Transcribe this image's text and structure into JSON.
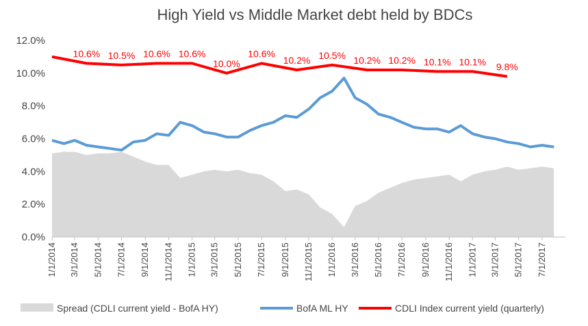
{
  "chart_data": {
    "type": "line",
    "title": "High Yield  vs  Middle Market debt held by BDCs",
    "ylim": [
      0,
      12
    ],
    "y_ticks": [
      "0.0%",
      "2.0%",
      "4.0%",
      "6.0%",
      "8.0%",
      "10.0%",
      "12.0%"
    ],
    "x_tick_labels": [
      "1/1/2014",
      "3/1/2014",
      "5/1/2014",
      "7/1/2014",
      "9/1/2014",
      "11/1/2014",
      "1/1/2015",
      "3/1/2015",
      "5/1/2015",
      "7/1/2015",
      "9/1/2015",
      "11/1/2015",
      "1/1/2016",
      "3/1/2016",
      "5/1/2016",
      "7/1/2016",
      "9/1/2016",
      "11/1/2016",
      "1/1/2017",
      "3/1/2017",
      "5/1/2017",
      "7/1/2017"
    ],
    "x_range": [
      "2014-01-01",
      "2017-08-31"
    ],
    "legend_position": "bottom",
    "colors": {
      "spread": "#d9d9d9",
      "hy": "#5b9bd5",
      "cdli": "#ff0000",
      "text": "#444444"
    },
    "series": [
      {
        "name": "CDLI Index current yield (quarterly)",
        "kind": "line",
        "x": [
          "2014-01-01",
          "2014-04-01",
          "2014-07-01",
          "2014-10-01",
          "2015-01-01",
          "2015-04-01",
          "2015-07-01",
          "2015-10-01",
          "2016-01-01",
          "2016-04-01",
          "2016-07-01",
          "2016-10-01",
          "2017-01-01",
          "2017-04-01"
        ],
        "values": [
          11.0,
          10.6,
          10.5,
          10.6,
          10.6,
          10.0,
          10.6,
          10.2,
          10.5,
          10.2,
          10.2,
          10.1,
          10.1,
          9.8
        ],
        "labels": [
          "",
          "10.6%",
          "10.5%",
          "10.6%",
          "10.6%",
          "10.0%",
          "10.6%",
          "10.2%",
          "10.5%",
          "10.2%",
          "10.2%",
          "10.1%",
          "10.1%",
          "9.8%"
        ]
      },
      {
        "name": "BofA ML HY",
        "kind": "line",
        "x": [
          "2014-01-01",
          "2014-02-01",
          "2014-03-01",
          "2014-04-01",
          "2014-05-01",
          "2014-06-01",
          "2014-07-01",
          "2014-08-01",
          "2014-09-01",
          "2014-10-01",
          "2014-11-01",
          "2014-12-01",
          "2015-01-01",
          "2015-02-01",
          "2015-03-01",
          "2015-04-01",
          "2015-05-01",
          "2015-06-01",
          "2015-07-01",
          "2015-08-01",
          "2015-09-01",
          "2015-10-01",
          "2015-11-01",
          "2015-12-01",
          "2016-01-01",
          "2016-02-01",
          "2016-03-01",
          "2016-04-01",
          "2016-05-01",
          "2016-06-01",
          "2016-07-01",
          "2016-08-01",
          "2016-09-01",
          "2016-10-01",
          "2016-11-01",
          "2016-12-01",
          "2017-01-01",
          "2017-02-01",
          "2017-03-01",
          "2017-04-01",
          "2017-05-01",
          "2017-06-01",
          "2017-07-01",
          "2017-08-01"
        ],
        "values": [
          5.9,
          5.7,
          5.9,
          5.6,
          5.5,
          5.4,
          5.3,
          5.8,
          5.9,
          6.3,
          6.2,
          7.0,
          6.8,
          6.4,
          6.3,
          6.1,
          6.1,
          6.5,
          6.8,
          7.0,
          7.4,
          7.3,
          7.8,
          8.5,
          8.9,
          9.7,
          8.5,
          8.1,
          7.5,
          7.3,
          7.0,
          6.7,
          6.6,
          6.6,
          6.4,
          6.8,
          6.3,
          6.1,
          6.0,
          5.8,
          5.7,
          5.5,
          5.6,
          5.5
        ]
      },
      {
        "name": "Spread (CDLI current yield - BofA HY)",
        "kind": "area",
        "x": [
          "2014-01-01",
          "2014-02-01",
          "2014-03-01",
          "2014-04-01",
          "2014-05-01",
          "2014-06-01",
          "2014-07-01",
          "2014-08-01",
          "2014-09-01",
          "2014-10-01",
          "2014-11-01",
          "2014-12-01",
          "2015-01-01",
          "2015-02-01",
          "2015-03-01",
          "2015-04-01",
          "2015-05-01",
          "2015-06-01",
          "2015-07-01",
          "2015-08-01",
          "2015-09-01",
          "2015-10-01",
          "2015-11-01",
          "2015-12-01",
          "2016-01-01",
          "2016-02-01",
          "2016-03-01",
          "2016-04-01",
          "2016-05-01",
          "2016-06-01",
          "2016-07-01",
          "2016-08-01",
          "2016-09-01",
          "2016-10-01",
          "2016-11-01",
          "2016-12-01",
          "2017-01-01",
          "2017-02-01",
          "2017-03-01",
          "2017-04-01",
          "2017-05-01",
          "2017-06-01",
          "2017-07-01",
          "2017-08-01"
        ],
        "values": [
          5.1,
          5.2,
          5.2,
          5.0,
          5.1,
          5.1,
          5.2,
          4.9,
          4.6,
          4.4,
          4.4,
          3.6,
          3.8,
          4.0,
          4.1,
          4.0,
          4.1,
          3.9,
          3.8,
          3.4,
          2.8,
          2.9,
          2.6,
          1.8,
          1.4,
          0.6,
          1.9,
          2.2,
          2.7,
          3.0,
          3.3,
          3.5,
          3.6,
          3.7,
          3.8,
          3.4,
          3.8,
          4.0,
          4.1,
          4.3,
          4.1,
          4.2,
          4.3,
          4.2
        ]
      }
    ],
    "legend": [
      {
        "label": "Spread (CDLI current yield - BofA HY)",
        "kind": "area"
      },
      {
        "label": "BofA ML HY",
        "kind": "line"
      },
      {
        "label": "CDLI Index current yield (quarterly)",
        "kind": "line"
      }
    ]
  }
}
